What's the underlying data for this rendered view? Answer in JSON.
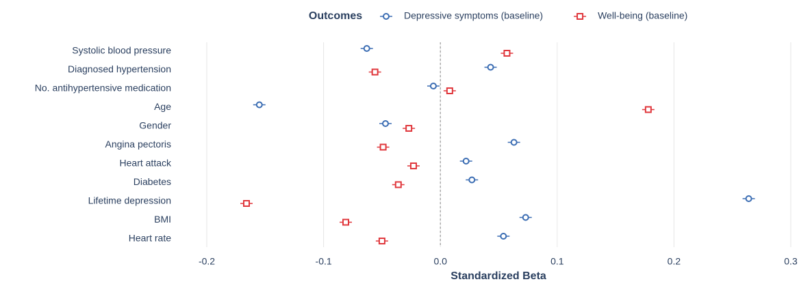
{
  "chart_data": {
    "type": "dot",
    "legend_title": "Outcomes",
    "x_label": "Standardized Beta",
    "categories": [
      "Systolic blood pressure",
      "Diagnosed hypertension",
      "No. antihypertensive medication",
      "Age",
      "Gender",
      "Angina pectoris",
      "Heart attack",
      "Diabetes",
      "Lifetime depression",
      "BMI",
      "Heart rate"
    ],
    "series": [
      {
        "name": "Depressive symptoms (baseline)",
        "color": "#3b6db3",
        "marker": "circle",
        "values": [
          -0.063,
          0.043,
          -0.006,
          -0.155,
          -0.047,
          0.063,
          0.022,
          0.027,
          0.264,
          0.073,
          0.054
        ]
      },
      {
        "name": "Well-being (baseline)",
        "color": "#e0373c",
        "marker": "square",
        "values": [
          0.057,
          -0.056,
          0.008,
          0.178,
          -0.027,
          -0.049,
          -0.023,
          -0.036,
          -0.166,
          -0.081,
          -0.05
        ]
      }
    ],
    "xlim": [
      -0.2,
      0.3
    ],
    "xticks": [
      -0.2,
      -0.1,
      {
        "value": 0,
        "label": "0.0"
      },
      0.1,
      0.2,
      0.3
    ],
    "reference_line": 0,
    "grid": true
  }
}
